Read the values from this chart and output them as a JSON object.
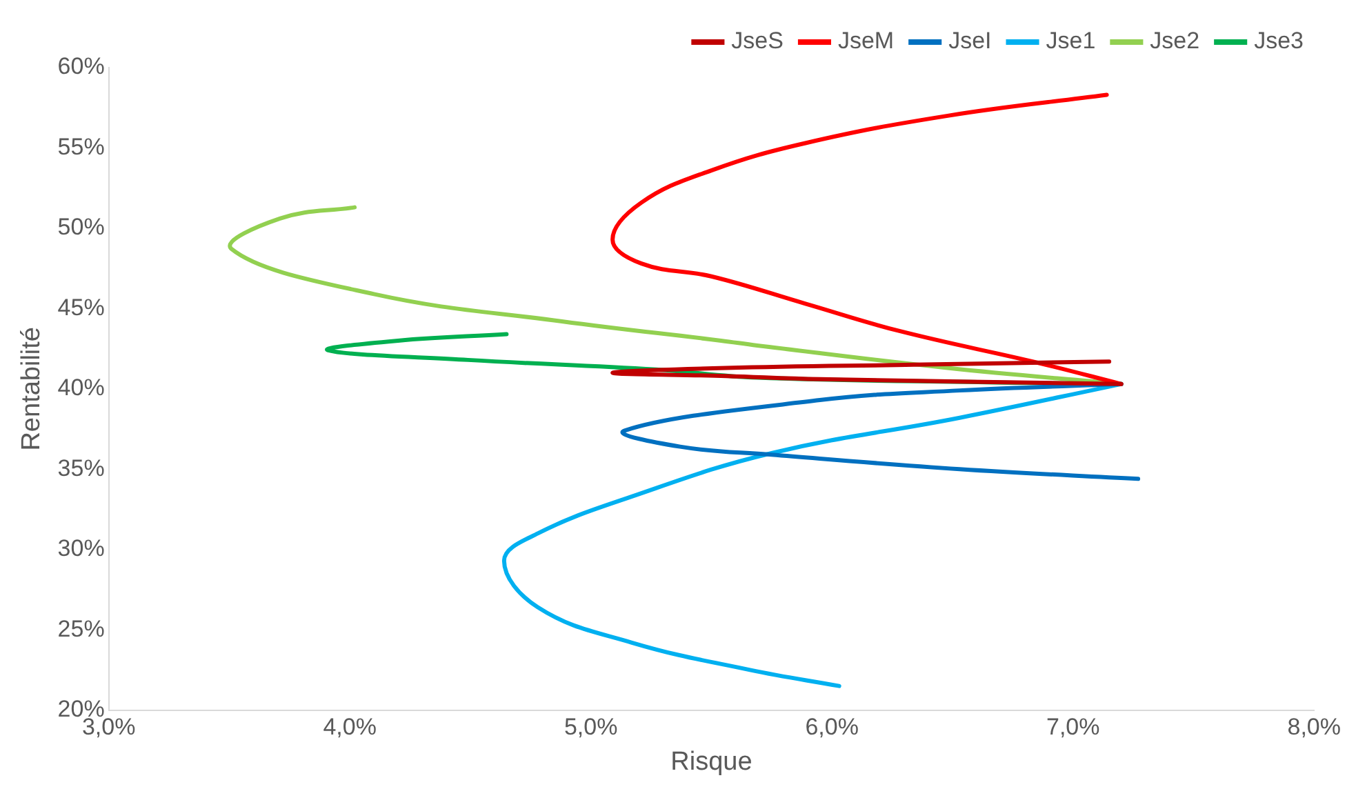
{
  "chart_data": {
    "type": "line",
    "xlabel": "Risque",
    "ylabel": "Rentabilité",
    "marker": "none",
    "grid": false,
    "legend": "top right",
    "xlim": [
      3,
      8
    ],
    "xticks": [
      {
        "value": 3,
        "label": "3,0%"
      },
      {
        "value": 4,
        "label": "4,0%"
      },
      {
        "value": 5,
        "label": "5,0%"
      },
      {
        "value": 6,
        "label": "6,0%"
      },
      {
        "value": 7,
        "label": "7,0%"
      },
      {
        "value": 8,
        "label": "8,0%"
      }
    ],
    "ylim": [
      20,
      60
    ],
    "yticks": [
      {
        "value": 20,
        "label": "20%"
      },
      {
        "value": 25,
        "label": "25%"
      },
      {
        "value": 30,
        "label": "30%"
      },
      {
        "value": 35,
        "label": "35%"
      },
      {
        "value": 40,
        "label": "40%"
      },
      {
        "value": 45,
        "label": "45%"
      },
      {
        "value": 50,
        "label": "50%"
      },
      {
        "value": 55,
        "label": "55%"
      },
      {
        "value": 60,
        "label": "60%"
      }
    ],
    "series": [
      {
        "name": "JseS",
        "color": "#c00000",
        "x": [
          7.2,
          5.95,
          5.56,
          5.09,
          5.56,
          6.34,
          7.15
        ],
        "values": [
          40.3,
          40.6,
          40.8,
          41.0,
          41.3,
          41.5,
          41.7
        ]
      },
      {
        "name": "JseM",
        "color": "#ff0000",
        "x": [
          7.2,
          6.86,
          6.28,
          5.89,
          5.5,
          5.21,
          5.09,
          5.21,
          5.5,
          5.89,
          6.48,
          7.14
        ],
        "values": [
          40.3,
          41.6,
          43.6,
          45.3,
          47.0,
          47.8,
          49.3,
          51.6,
          53.6,
          55.3,
          57.0,
          58.3
        ]
      },
      {
        "name": "JseI",
        "color": "#0070c0",
        "x": [
          7.2,
          6.53,
          5.95,
          5.14,
          5.37,
          5.75,
          6.53,
          7.27
        ],
        "values": [
          40.3,
          39.9,
          39.3,
          37.4,
          36.4,
          35.9,
          35.0,
          34.4
        ]
      },
      {
        "name": "Jse1",
        "color": "#00b0f0",
        "x": [
          7.2,
          6.53,
          5.75,
          5.17,
          4.78,
          4.64,
          4.78,
          5.17,
          5.66,
          6.03
        ],
        "values": [
          40.3,
          38.2,
          36.0,
          33.3,
          31.0,
          29.3,
          26.4,
          24.2,
          22.5,
          21.5
        ]
      },
      {
        "name": "Jse2",
        "color": "#92d050",
        "x": [
          7.2,
          6.48,
          5.69,
          5.54,
          4.88,
          4.1,
          3.51,
          3.71,
          4.02
        ],
        "values": [
          40.3,
          41.3,
          42.7,
          43.0,
          44.2,
          45.9,
          48.7,
          50.6,
          51.3
        ]
      },
      {
        "name": "Jse3",
        "color": "#00b050",
        "x": [
          7.2,
          6.67,
          5.69,
          5.27,
          4.49,
          3.91,
          4.2,
          4.65
        ],
        "values": [
          40.3,
          40.4,
          40.7,
          41.2,
          41.8,
          42.4,
          43.0,
          43.4
        ]
      }
    ]
  }
}
